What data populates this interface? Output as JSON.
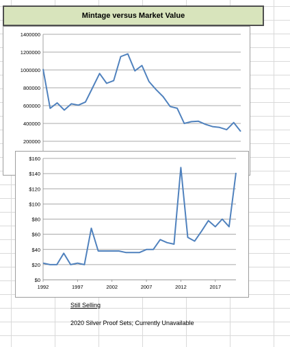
{
  "title": "Mintage versus Market Value",
  "link_label": "Still Selling",
  "note": "2020 Silver Proof Sets; Currently Unavailable",
  "colors": {
    "line": "#4f81bd",
    "title_bg": "#d8e4bc"
  },
  "chart_data": [
    {
      "type": "line",
      "title": "",
      "ylim": [
        0,
        1400000
      ],
      "yticks": [
        200000,
        400000,
        600000,
        800000,
        1000000,
        1200000,
        1400000
      ],
      "ytick_labels": [
        "200000",
        "400000",
        "600000",
        "800000",
        "1000000",
        "1200000",
        "1400000"
      ],
      "x": [
        1992,
        1993,
        1994,
        1995,
        1996,
        1997,
        1998,
        1999,
        2000,
        2001,
        2002,
        2003,
        2004,
        2005,
        2006,
        2007,
        2008,
        2009,
        2010,
        2011,
        2012,
        2013,
        2014,
        2015,
        2016,
        2017,
        2018,
        2019,
        2020
      ],
      "series": [
        {
          "values": [
            1010000,
            570000,
            630000,
            550000,
            620000,
            605000,
            640000,
            800000,
            960000,
            850000,
            880000,
            1150000,
            1180000,
            990000,
            1050000,
            870000,
            780000,
            700000,
            590000,
            570000,
            400000,
            420000,
            425000,
            390000,
            365000,
            355000,
            330000,
            410000,
            310000
          ]
        }
      ],
      "grid": true
    },
    {
      "type": "line",
      "title": "",
      "ylim": [
        0,
        160
      ],
      "yticks": [
        0,
        20,
        40,
        60,
        80,
        100,
        120,
        140,
        160
      ],
      "ytick_labels": [
        "$0",
        "$20",
        "$40",
        "$60",
        "$80",
        "$100",
        "$120",
        "$140",
        "$160"
      ],
      "xticks": [
        1992,
        1997,
        2002,
        2007,
        2012,
        2017
      ],
      "xtick_labels": [
        "1992",
        "1997",
        "2002",
        "2007",
        "2012",
        "2017"
      ],
      "x": [
        1992,
        1993,
        1994,
        1995,
        1996,
        1997,
        1998,
        1999,
        2000,
        2001,
        2002,
        2003,
        2004,
        2005,
        2006,
        2007,
        2008,
        2009,
        2010,
        2011,
        2012,
        2013,
        2014,
        2015,
        2016,
        2017,
        2018,
        2019,
        2020
      ],
      "series": [
        {
          "values": [
            22,
            20,
            20,
            35,
            20,
            22,
            20,
            68,
            38,
            38,
            38,
            38,
            36,
            36,
            36,
            40,
            40,
            53,
            49,
            47,
            148,
            56,
            51,
            64,
            78,
            70,
            80,
            70,
            141
          ]
        }
      ],
      "grid": true
    }
  ]
}
